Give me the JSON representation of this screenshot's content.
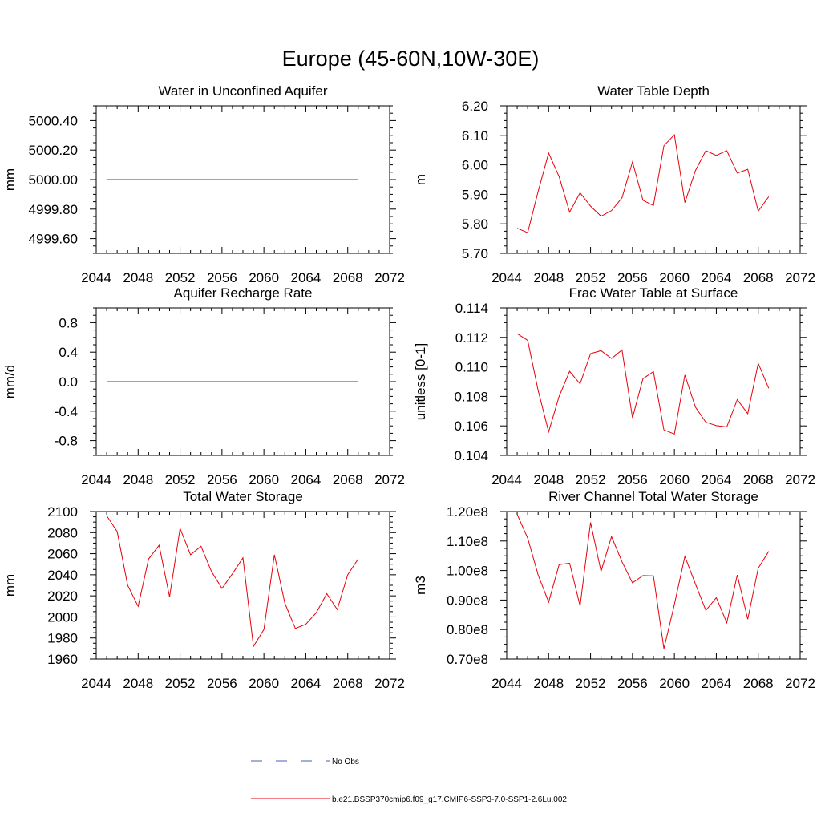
{
  "figure": {
    "title": "Europe (45-60N,10W-30E)",
    "legend": {
      "placement": "bottom-center",
      "obs_label": "No Obs",
      "obs_color": "#4a5db5",
      "model_label": "b.e21.BSSP370cmip6.f09_g17.CMIP6-SSP3-7.0-SSP1-2.6Lu.002",
      "model_color": "#e8000b"
    }
  },
  "chart_data": [
    {
      "type": "line",
      "title": "Water in Unconfined Aquifer",
      "ylabel": "mm",
      "xlim": [
        2044,
        2072
      ],
      "ylim": [
        4999.5,
        5000.5
      ],
      "xticks": [
        2044,
        2048,
        2052,
        2056,
        2060,
        2064,
        2068,
        2072
      ],
      "yticks": [
        4999.6,
        4999.8,
        5000.0,
        5000.2,
        5000.4
      ],
      "ytick_labels": [
        "4999.60",
        "4999.80",
        "5000.00",
        "5000.20",
        "5000.40"
      ],
      "x": [
        2045,
        2046,
        2047,
        2048,
        2049,
        2050,
        2051,
        2052,
        2053,
        2054,
        2055,
        2056,
        2057,
        2058,
        2059,
        2060,
        2061,
        2062,
        2063,
        2064,
        2065,
        2066,
        2067,
        2068,
        2069
      ],
      "series": [
        {
          "values": [
            5000,
            5000,
            5000,
            5000,
            5000,
            5000,
            5000,
            5000,
            5000,
            5000,
            5000,
            5000,
            5000,
            5000,
            5000,
            5000,
            5000,
            5000,
            5000,
            5000,
            5000,
            5000,
            5000,
            5000,
            5000
          ]
        }
      ]
    },
    {
      "type": "line",
      "title": "Water Table Depth",
      "ylabel": "m",
      "xlim": [
        2044,
        2072
      ],
      "ylim": [
        5.7,
        6.2
      ],
      "xticks": [
        2044,
        2048,
        2052,
        2056,
        2060,
        2064,
        2068,
        2072
      ],
      "yticks": [
        5.7,
        5.8,
        5.9,
        6.0,
        6.1,
        6.2
      ],
      "ytick_labels": [
        "5.70",
        "5.80",
        "5.90",
        "6.00",
        "6.10",
        "6.20"
      ],
      "x": [
        2045,
        2046,
        2047,
        2048,
        2049,
        2050,
        2051,
        2052,
        2053,
        2054,
        2055,
        2056,
        2057,
        2058,
        2059,
        2060,
        2061,
        2062,
        2063,
        2064,
        2065,
        2066,
        2067,
        2068,
        2069
      ],
      "series": [
        {
          "values": [
            5.785,
            5.77,
            5.91,
            6.04,
            5.96,
            5.84,
            5.905,
            5.86,
            5.826,
            5.845,
            5.888,
            6.01,
            5.88,
            5.862,
            6.065,
            6.102,
            5.872,
            5.98,
            6.048,
            6.032,
            6.048,
            5.972,
            5.985,
            5.843,
            5.892
          ]
        }
      ]
    },
    {
      "type": "line",
      "title": "Aquifer Recharge Rate",
      "ylabel": "mm/d",
      "xlim": [
        2044,
        2072
      ],
      "ylim": [
        -1,
        1
      ],
      "xticks": [
        2044,
        2048,
        2052,
        2056,
        2060,
        2064,
        2068,
        2072
      ],
      "yticks": [
        -0.8,
        -0.4,
        0.0,
        0.4,
        0.8
      ],
      "ytick_labels": [
        "-0.8",
        "-0.4",
        "0.0",
        "0.4",
        "0.8"
      ],
      "x": [
        2045,
        2046,
        2047,
        2048,
        2049,
        2050,
        2051,
        2052,
        2053,
        2054,
        2055,
        2056,
        2057,
        2058,
        2059,
        2060,
        2061,
        2062,
        2063,
        2064,
        2065,
        2066,
        2067,
        2068,
        2069
      ],
      "series": [
        {
          "values": [
            0,
            0,
            0,
            0,
            0,
            0,
            0,
            0,
            0,
            0,
            0,
            0,
            0,
            0,
            0,
            0,
            0,
            0,
            0,
            0,
            0,
            0,
            0,
            0,
            0
          ]
        }
      ]
    },
    {
      "type": "line",
      "title": "Frac Water Table at Surface",
      "ylabel": "unitless [0-1]",
      "xlim": [
        2044,
        2072
      ],
      "ylim": [
        0.104,
        0.114
      ],
      "xticks": [
        2044,
        2048,
        2052,
        2056,
        2060,
        2064,
        2068,
        2072
      ],
      "yticks": [
        0.104,
        0.106,
        0.108,
        0.11,
        0.112,
        0.114
      ],
      "ytick_labels": [
        "0.104",
        "0.106",
        "0.108",
        "0.110",
        "0.112",
        "0.114"
      ],
      "x": [
        2045,
        2046,
        2047,
        2048,
        2049,
        2050,
        2051,
        2052,
        2053,
        2054,
        2055,
        2056,
        2057,
        2058,
        2059,
        2060,
        2061,
        2062,
        2063,
        2064,
        2065,
        2066,
        2067,
        2068,
        2069
      ],
      "series": [
        {
          "values": [
            0.11225,
            0.1118,
            0.1084,
            0.1056,
            0.108,
            0.1097,
            0.10885,
            0.1109,
            0.1111,
            0.11057,
            0.11115,
            0.10655,
            0.1092,
            0.10968,
            0.10573,
            0.10545,
            0.10945,
            0.10728,
            0.10625,
            0.10602,
            0.10593,
            0.10778,
            0.10683,
            0.11024,
            0.10855
          ]
        }
      ]
    },
    {
      "type": "line",
      "title": "Total Water Storage",
      "ylabel": "mm",
      "xlim": [
        2044,
        2072
      ],
      "ylim": [
        1960,
        2100
      ],
      "xticks": [
        2044,
        2048,
        2052,
        2056,
        2060,
        2064,
        2068,
        2072
      ],
      "yticks": [
        1960,
        1980,
        2000,
        2020,
        2040,
        2060,
        2080,
        2100
      ],
      "ytick_labels": [
        "1960",
        "1980",
        "2000",
        "2020",
        "2040",
        "2060",
        "2080",
        "2100"
      ],
      "x": [
        2045,
        2046,
        2047,
        2048,
        2049,
        2050,
        2051,
        2052,
        2053,
        2054,
        2055,
        2056,
        2057,
        2058,
        2059,
        2060,
        2061,
        2062,
        2063,
        2064,
        2065,
        2066,
        2067,
        2068,
        2069
      ],
      "series": [
        {
          "values": [
            2096,
            2081,
            2030,
            2010,
            2055,
            2068,
            2019,
            2084,
            2059,
            2067,
            2043,
            2027,
            2041,
            2056,
            1972,
            1988,
            2059,
            2013,
            1989,
            1993,
            2004,
            2022,
            2007,
            2040,
            2055
          ]
        }
      ]
    },
    {
      "type": "line",
      "title": "River Channel Total Water Storage",
      "ylabel": "m3",
      "xlim": [
        2044,
        2072
      ],
      "ylim": [
        0.7,
        1.2
      ],
      "xticks": [
        2044,
        2048,
        2052,
        2056,
        2060,
        2064,
        2068,
        2072
      ],
      "yticks": [
        0.7,
        0.8,
        0.9,
        1.0,
        1.1,
        1.2
      ],
      "ytick_labels": [
        "0.70e8",
        "0.80e8",
        "0.90e8",
        "1.00e8",
        "1.10e8",
        "1.20e8"
      ],
      "x": [
        2045,
        2046,
        2047,
        2048,
        2049,
        2050,
        2051,
        2052,
        2053,
        2054,
        2055,
        2056,
        2057,
        2058,
        2059,
        2060,
        2061,
        2062,
        2063,
        2064,
        2065,
        2066,
        2067,
        2068,
        2069
      ],
      "series": [
        {
          "values": [
            1.19,
            1.11,
            0.985,
            0.893,
            1.02,
            1.025,
            0.88,
            1.163,
            0.997,
            1.115,
            1.03,
            0.958,
            0.983,
            0.982,
            0.735,
            0.885,
            1.048,
            0.955,
            0.865,
            0.908,
            0.823,
            0.985,
            0.835,
            1.008,
            1.065
          ]
        }
      ]
    }
  ]
}
